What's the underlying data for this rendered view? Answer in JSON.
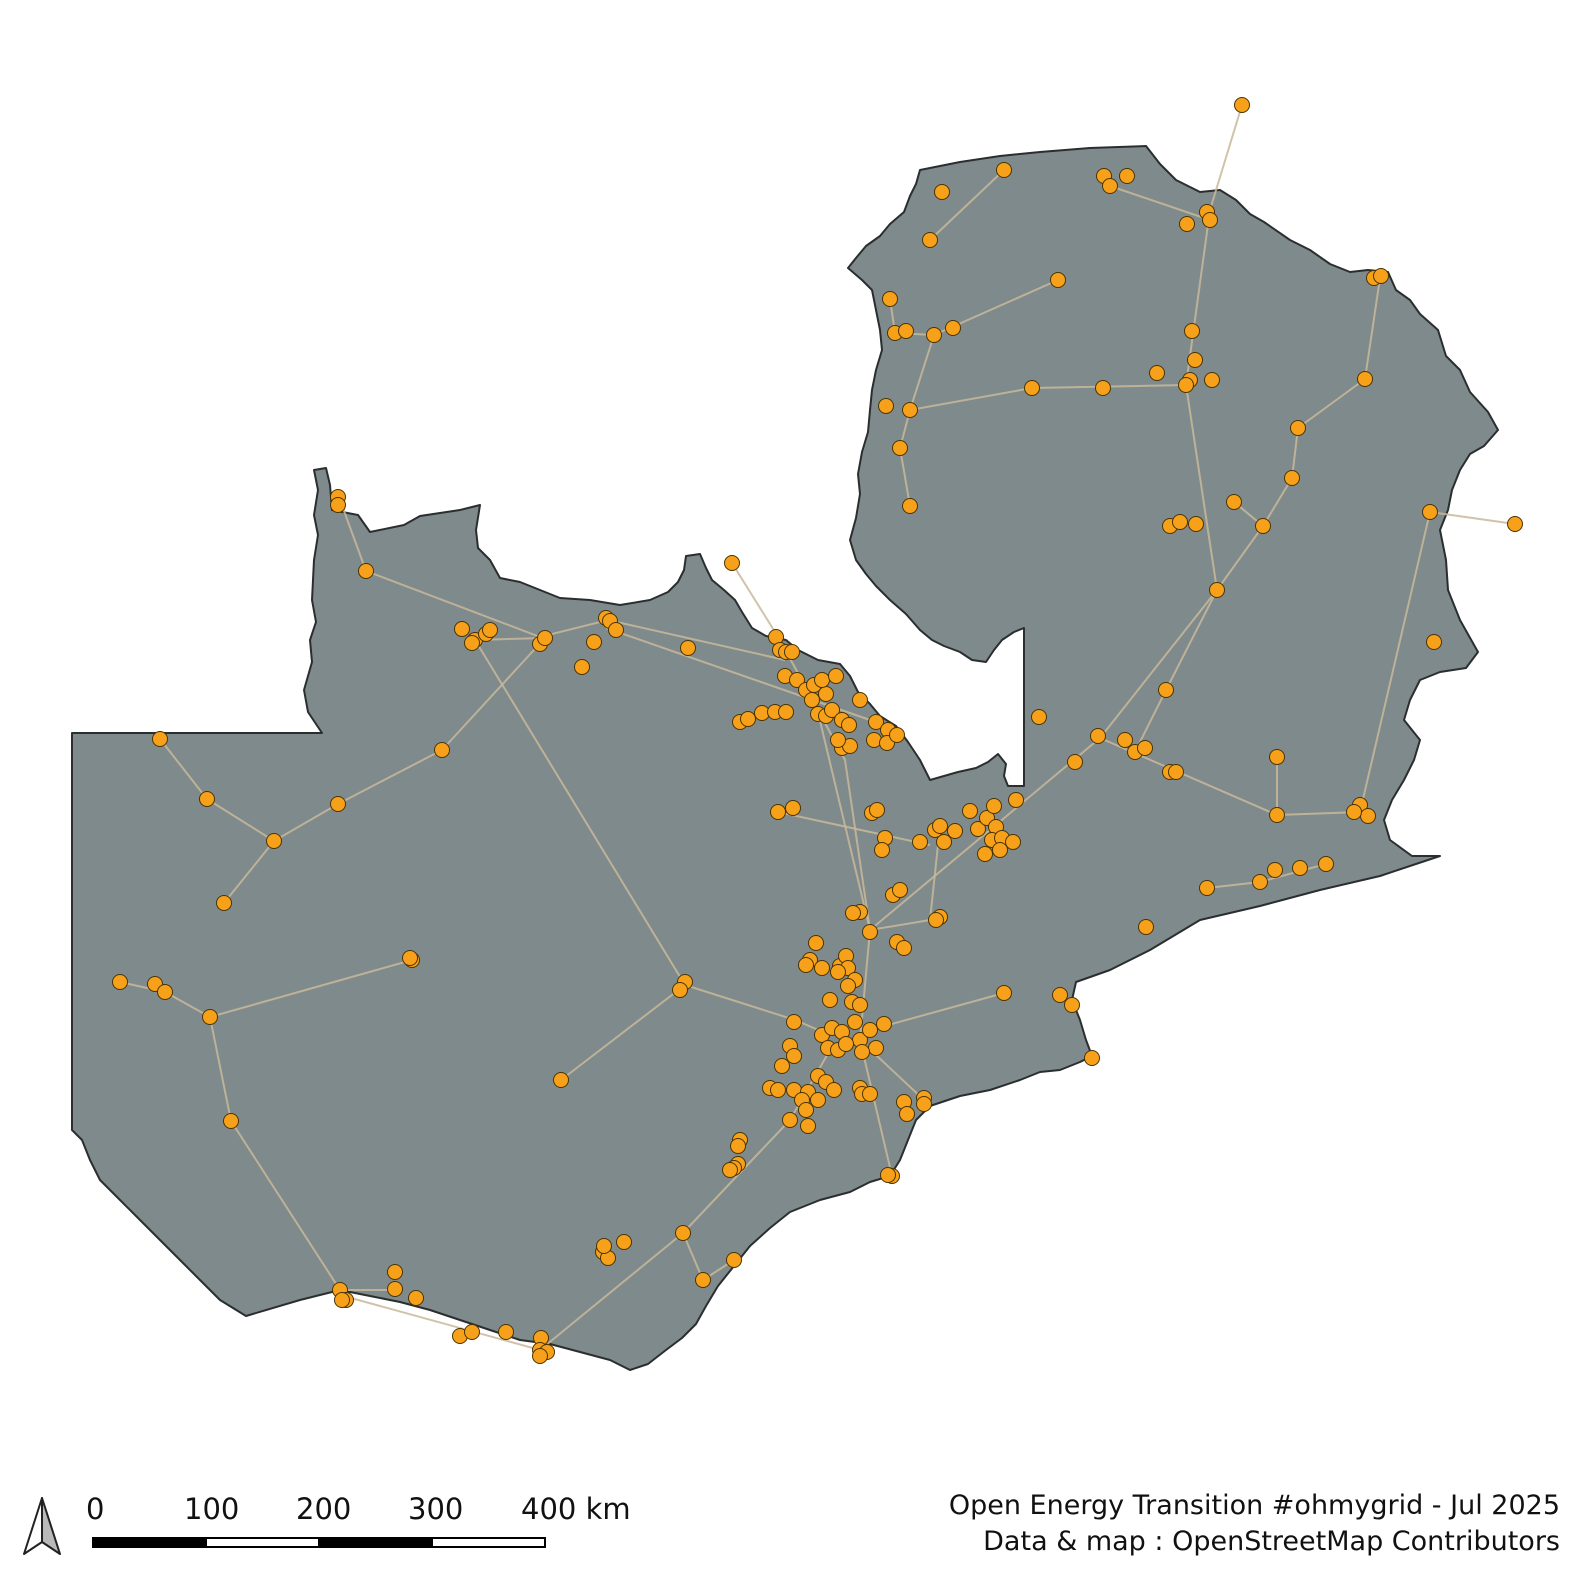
{
  "map": {
    "colors": {
      "country_fill": "#7f8a8c",
      "country_stroke": "#2a2e2f",
      "substation": "#f7a11a",
      "line": "#c8b99a"
    },
    "layers": [
      "country-boundary",
      "transmission-lines",
      "substations"
    ]
  },
  "scale_bar": {
    "ticks": [
      "0",
      "100",
      "200",
      "300",
      "400 km"
    ]
  },
  "north_arrow": {
    "icon": "north-arrow-icon"
  },
  "credits": {
    "line1": "Open Energy Transition #ohmygrid - Jul 2025",
    "line2": "Data & map : OpenStreetMap Contributors"
  }
}
